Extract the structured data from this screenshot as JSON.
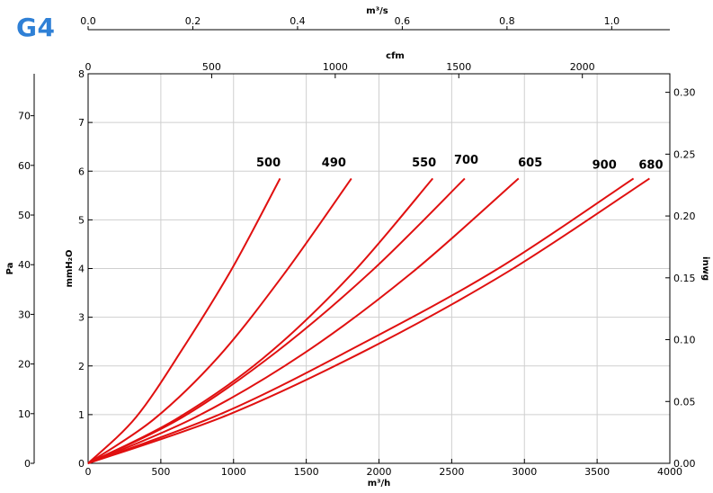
{
  "badge": "G4",
  "chart_data": {
    "type": "line",
    "title": "",
    "xlabel": "m³/h",
    "ylabel": "mmH₂O",
    "xlim": [
      0,
      4000
    ],
    "ylim": [
      0,
      8
    ],
    "x_ticks": [
      0,
      500,
      1000,
      1500,
      2000,
      2500,
      3000,
      3500,
      4000
    ],
    "y_ticks": [
      0,
      1,
      2,
      3,
      4,
      5,
      6,
      7,
      8
    ],
    "grid": true,
    "secondary_axes": {
      "top_cfm": {
        "label": "cfm",
        "ticks": [
          0,
          500,
          1000,
          1500,
          2000
        ],
        "lim": [
          0,
          2354
        ]
      },
      "top_m3s": {
        "label": "m³/s",
        "ticks": [
          "0.0",
          "0.2",
          "0.4",
          "0.6",
          "0.8",
          "1.0"
        ],
        "lim": [
          0,
          1.111
        ]
      },
      "left_pa": {
        "label": "Pa",
        "ticks": [
          0,
          10,
          20,
          30,
          40,
          50,
          60,
          70
        ],
        "lim": [
          0,
          78.45
        ]
      },
      "right_inwg": {
        "label": "inwg",
        "ticks": [
          "0.00",
          "0.05",
          "0.10",
          "0.15",
          "0.20",
          "0.25",
          "0.30"
        ],
        "lim": [
          0,
          0.315
        ]
      }
    },
    "series": [
      {
        "name": "500",
        "x": [
          0,
          330,
          660,
          990,
          1320
        ],
        "y": [
          0,
          0.95,
          2.4,
          4.0,
          5.85
        ]
      },
      {
        "name": "490",
        "x": [
          0,
          450,
          900,
          1350,
          1810
        ],
        "y": [
          0,
          0.9,
          2.2,
          3.9,
          5.85
        ]
      },
      {
        "name": "550",
        "x": [
          0,
          600,
          1200,
          1800,
          2370
        ],
        "y": [
          0,
          0.9,
          2.15,
          3.85,
          5.85
        ]
      },
      {
        "name": "700",
        "x": [
          0,
          650,
          1300,
          1950,
          2590
        ],
        "y": [
          0,
          0.95,
          2.3,
          3.95,
          5.85
        ]
      },
      {
        "name": "605",
        "x": [
          0,
          740,
          1480,
          2220,
          2960
        ],
        "y": [
          0,
          0.95,
          2.25,
          3.9,
          5.85
        ]
      },
      {
        "name": "900",
        "x": [
          0,
          940,
          1880,
          2820,
          3750
        ],
        "y": [
          0,
          1.05,
          2.45,
          4.0,
          5.85
        ]
      },
      {
        "name": "680",
        "x": [
          0,
          965,
          1930,
          2895,
          3860
        ],
        "y": [
          0,
          1.0,
          2.35,
          3.95,
          5.85
        ]
      }
    ],
    "labels": [
      {
        "text": "500",
        "x": 1240,
        "y": 6.1
      },
      {
        "text": "490",
        "x": 1690,
        "y": 6.1
      },
      {
        "text": "550",
        "x": 2310,
        "y": 6.1
      },
      {
        "text": "700",
        "x": 2600,
        "y": 6.15
      },
      {
        "text": "605",
        "x": 3040,
        "y": 6.1
      },
      {
        "text": "900",
        "x": 3550,
        "y": 6.05
      },
      {
        "text": "680",
        "x": 3870,
        "y": 6.05
      }
    ]
  }
}
